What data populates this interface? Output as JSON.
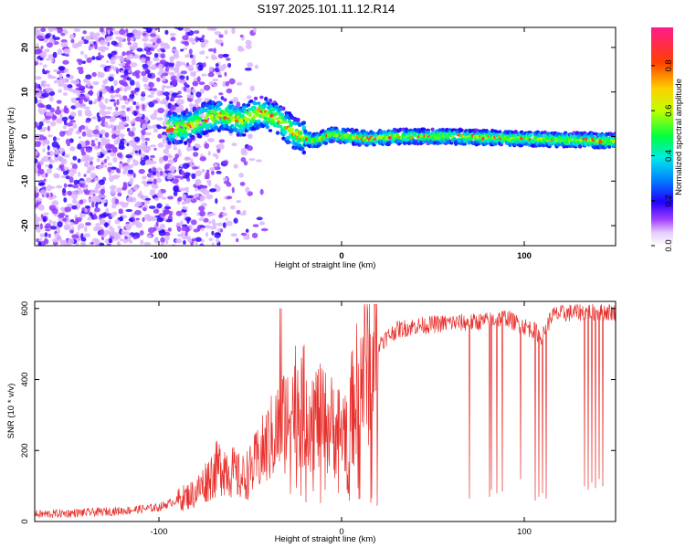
{
  "title": "S197.2025.101.11.12.R14",
  "colors": {
    "snr_line": "#e8322e",
    "spectrogram_colormap": [
      "#ffffff",
      "#d9b8f5",
      "#8a2be2",
      "#3a00ff",
      "#0060ff",
      "#00e0ff",
      "#20ff20",
      "#ffff00",
      "#ff9000",
      "#ff0000",
      "#ff1a8c"
    ]
  },
  "chart_data": [
    {
      "type": "heatmap",
      "xlabel": "Height of straight line (km)",
      "ylabel": "Frequency (Hz)",
      "xlim": [
        -168,
        150
      ],
      "ylim": [
        -24.5,
        24.5
      ],
      "x_ticks": [
        -100,
        0,
        100
      ],
      "y_ticks": [
        -20,
        -10,
        0,
        10,
        20
      ],
      "colorbar": {
        "label": "Normalized spectral amplitude",
        "range": [
          0.0,
          0.97
        ],
        "ticks": [
          "0.0",
          "0.2",
          "0.4",
          "0.6",
          "0.8"
        ]
      },
      "ridge_frequency_track": {
        "x": [
          -85,
          -75,
          -65,
          -55,
          -45,
          -35,
          -25,
          -15,
          -5,
          5,
          15,
          30,
          60,
          100,
          150
        ],
        "y": [
          2,
          4,
          5,
          3.5,
          5.5,
          4,
          0.5,
          -1,
          0.5,
          0,
          -0.5,
          0,
          0,
          -0.5,
          -1
        ]
      }
    },
    {
      "type": "line",
      "xlabel": "Height of straight line (km)",
      "ylabel": "SNR (10 * v/v)",
      "xlim": [
        -168,
        150
      ],
      "ylim": [
        0,
        620
      ],
      "x_ticks": [
        -100,
        0,
        100
      ],
      "y_ticks": [
        0,
        200,
        400,
        600
      ],
      "series": [
        {
          "x": [
            -168,
            -140,
            -120,
            -100,
            -90,
            -80,
            -75,
            -70,
            -65,
            -60,
            -55,
            -50,
            -45,
            -40,
            -35,
            -30,
            -25,
            -20,
            -15,
            -10,
            -5,
            0,
            5,
            10,
            15,
            20,
            25,
            30,
            40,
            50,
            60,
            70,
            80,
            90,
            95,
            100,
            105,
            110,
            115,
            120,
            130,
            140,
            150
          ],
          "y": [
            20,
            25,
            30,
            40,
            60,
            80,
            110,
            140,
            160,
            140,
            120,
            140,
            180,
            220,
            260,
            300,
            340,
            320,
            300,
            280,
            270,
            250,
            300,
            400,
            460,
            500,
            520,
            540,
            550,
            555,
            560,
            560,
            565,
            575,
            560,
            550,
            540,
            520,
            580,
            585,
            590,
            590,
            590
          ]
        }
      ],
      "dropouts": [
        {
          "x": 70,
          "y": 65
        },
        {
          "x": 81,
          "y": 70
        },
        {
          "x": 82,
          "y": 90
        },
        {
          "x": 85,
          "y": 80
        },
        {
          "x": 88,
          "y": 85
        },
        {
          "x": 98,
          "y": 120
        },
        {
          "x": 106,
          "y": 60
        },
        {
          "x": 108,
          "y": 70
        },
        {
          "x": 110,
          "y": 80
        },
        {
          "x": 112,
          "y": 65
        },
        {
          "x": 133,
          "y": 100
        },
        {
          "x": 135,
          "y": 90
        },
        {
          "x": 137,
          "y": 110
        },
        {
          "x": 139,
          "y": 95
        },
        {
          "x": 141,
          "y": 120
        },
        {
          "x": 143,
          "y": 100
        }
      ]
    }
  ]
}
